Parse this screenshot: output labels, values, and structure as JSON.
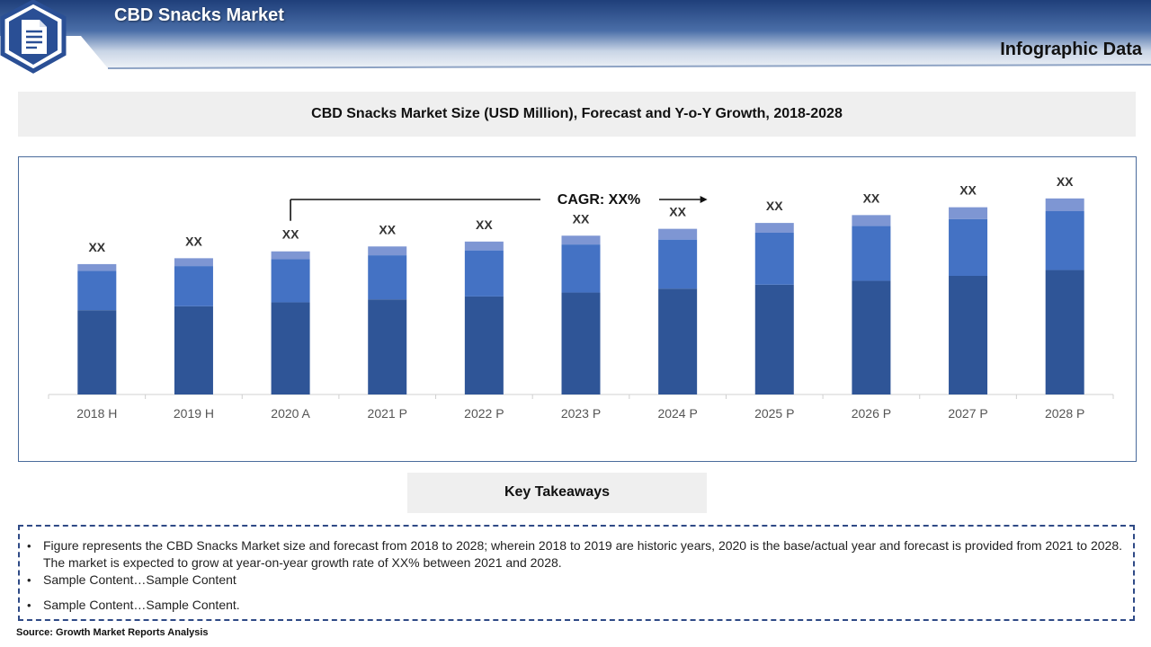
{
  "header": {
    "title": "CBD Snacks Market",
    "subtitle": "Infographic Data",
    "icon": "document-icon",
    "colors": {
      "banner_dark": "#1f3f7a",
      "banner_light": "#dfe6f0",
      "hexagon": "#2a4f95"
    }
  },
  "chart_data": {
    "type": "bar",
    "title": "CBD Snacks Market Size (USD Million), Forecast and Y-o-Y Growth, 2018-2028",
    "categories": [
      "2018 H",
      "2019 H",
      "2020 A",
      "2021 P",
      "2022 P",
      "2023 P",
      "2024 P",
      "2025 P",
      "2026 P",
      "2027 P",
      "2028 P"
    ],
    "series": [
      {
        "color": "#2f5597",
        "values": [
          86,
          90,
          94,
          97,
          100,
          104,
          108,
          112,
          116,
          121,
          127
        ]
      },
      {
        "color": "#4472c4",
        "values": [
          40,
          41,
          44,
          45,
          47,
          49,
          50,
          53,
          56,
          58,
          60
        ]
      },
      {
        "color": "#7e96d3",
        "values": [
          7,
          8,
          8,
          9,
          9,
          9,
          11,
          10,
          11,
          12,
          13
        ]
      }
    ],
    "data_labels": [
      "XX",
      "XX",
      "XX",
      "XX",
      "XX",
      "XX",
      "XX",
      "XX",
      "XX",
      "XX",
      "XX"
    ],
    "annotation": "CAGR: XX%",
    "ylim": [
      0,
      220
    ],
    "grid": false
  },
  "takeaways": {
    "heading": "Key Takeaways",
    "items": [
      "Figure represents the CBD Snacks Market  size and forecast from 2018 to 2028; wherein 2018 to 2019 are historic years, 2020 is the base/actual year and forecast is provided from 2021 to 2028. The market is expected to grow at year-on-year growth rate of XX% between 2021 and 2028.",
      "Sample Content…Sample Content",
      "Sample Content…Sample Content."
    ]
  },
  "source": "Source: Growth Market Reports Analysis"
}
